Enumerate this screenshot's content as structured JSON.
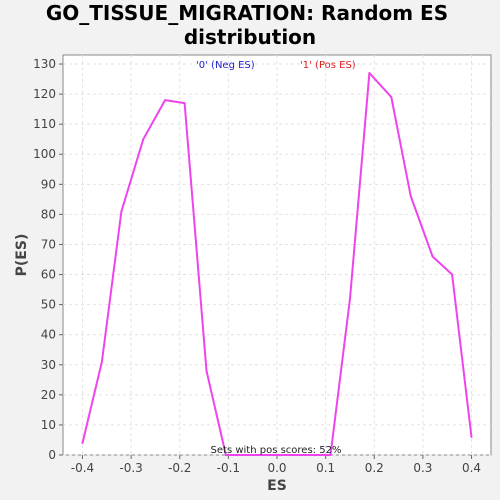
{
  "title_line1": "GO_TISSUE_MIGRATION: Random ES",
  "title_line2": "distribution",
  "legend": {
    "neg_label": "'0' (Neg ES)",
    "neg_color": "#2222cc",
    "pos_label": "'1' (Pos ES)",
    "pos_color": "#dd2222"
  },
  "annotation": "Sets with pos scores: 52%",
  "chart_data": {
    "type": "line",
    "xlabel": "ES",
    "ylabel": "P(ES)",
    "xlim": [
      -0.44,
      0.44
    ],
    "ylim": [
      0,
      133
    ],
    "x_ticks": [
      -0.4,
      -0.3,
      -0.2,
      -0.1,
      0.0,
      0.1,
      0.2,
      0.3,
      0.4
    ],
    "x_tick_labels": [
      "-0.4",
      "-0.3",
      "-0.2",
      "-0.1",
      "0.0",
      "0.1",
      "0.2",
      "0.3",
      "0.4"
    ],
    "y_ticks": [
      0,
      10,
      20,
      30,
      40,
      50,
      60,
      70,
      80,
      90,
      100,
      110,
      120,
      130
    ],
    "y_tick_labels": [
      "0",
      "10",
      "20",
      "30",
      "40",
      "50",
      "60",
      "70",
      "80",
      "90",
      "100",
      "110",
      "120",
      "130"
    ],
    "grid": true,
    "line_color": "#ee44ee",
    "series": [
      {
        "x": [
          -0.4,
          -0.36,
          -0.32,
          -0.275,
          -0.23,
          -0.19,
          -0.145,
          -0.105,
          0.0,
          0.11,
          0.15,
          0.19,
          0.235,
          0.275,
          0.32,
          0.36,
          0.4
        ],
        "values": [
          4,
          31,
          81,
          105,
          118,
          117,
          28,
          0,
          0,
          0,
          52,
          127,
          119,
          86,
          66,
          60,
          6
        ]
      }
    ]
  }
}
